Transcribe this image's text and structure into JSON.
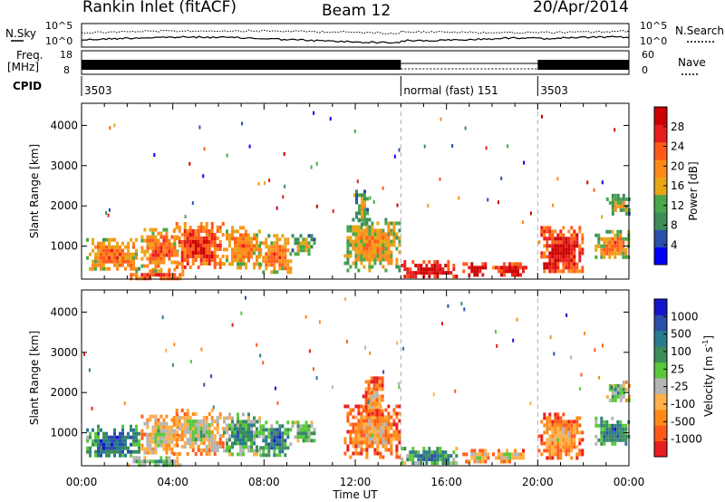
{
  "header": {
    "station": "Rankin Inlet (fitACF)",
    "beam": "Beam 12",
    "date": "20/Apr/2014"
  },
  "labels": {
    "nsky": "N.Sky",
    "nsearch": "N.Search",
    "freq_line1": "Freq.",
    "freq_line2": "[MHz]",
    "nave": "Nave",
    "cpid": "CPID",
    "slant_range": "Slant Range [km]",
    "power_label": "Power [dB]",
    "velocity_label": "Velocity [m s",
    "velocity_exp": "-1",
    "velocity_close": "]",
    "time_axis": "Time UT"
  },
  "noise_panel": {
    "left_ticks": [
      "10^5",
      "10^0"
    ],
    "right_ticks": [
      "10^5",
      "10^0"
    ]
  },
  "freq_panel": {
    "left_ticks": [
      "18",
      "8"
    ],
    "right_ticks": [
      "60",
      "0"
    ]
  },
  "cpid_segments": [
    {
      "label": "3503",
      "start_hour": 0
    },
    {
      "label": "normal (fast) 151",
      "start_hour": 14
    },
    {
      "label": "3503",
      "start_hour": 20
    }
  ],
  "colors": {
    "power": [
      "#0000ff",
      "#2a4fa8",
      "#3d8c5a",
      "#4aa64a",
      "#e8a617",
      "#ff8a1a",
      "#ff5a1a",
      "#e81e1e",
      "#cc0000"
    ],
    "velocity": [
      "#e81e1e",
      "#ff5a1a",
      "#ff8a1a",
      "#ffb04a",
      "#b4b4b4",
      "#5ac83a",
      "#3d8c5a",
      "#2a7a90",
      "#2a4fa8",
      "#1414c8"
    ],
    "ground_scatter": "#a0a0a0"
  },
  "chart_data": [
    {
      "type": "heatmap",
      "name": "power",
      "x_unit": "hour UT",
      "xlim": [
        0,
        24
      ],
      "ylim": [
        180,
        4550
      ],
      "x_ticks": [
        "00:00",
        "04:00",
        "08:00",
        "12:00",
        "16:00",
        "20:00",
        "00:00"
      ],
      "y_ticks": [
        "1000",
        "2000",
        "3000",
        "4000"
      ],
      "colorbar_ticks": [
        "4",
        "8",
        "12",
        "16",
        "20",
        "24",
        "28"
      ],
      "clim": [
        0,
        30
      ],
      "cpid_changes": [
        14,
        20
      ],
      "regions": [
        {
          "x0": 0.2,
          "x1": 2.5,
          "y0": 400,
          "y1": 1200,
          "level": 0.55
        },
        {
          "x0": 2.6,
          "x1": 4.2,
          "y0": 450,
          "y1": 1450,
          "level": 0.6
        },
        {
          "x0": 4.0,
          "x1": 6.2,
          "y0": 450,
          "y1": 1600,
          "level": 0.7
        },
        {
          "x0": 6.2,
          "x1": 7.8,
          "y0": 500,
          "y1": 1500,
          "level": 0.55
        },
        {
          "x0": 7.8,
          "x1": 9.2,
          "y0": 350,
          "y1": 1300,
          "level": 0.55
        },
        {
          "x0": 9.2,
          "x1": 10.2,
          "y0": 800,
          "y1": 1300,
          "level": 0.35
        },
        {
          "x0": 11.5,
          "x1": 14.0,
          "y0": 400,
          "y1": 1700,
          "level": 0.45
        },
        {
          "x0": 12.0,
          "x1": 12.5,
          "y0": 1500,
          "y1": 2400,
          "level": 0.35
        },
        {
          "x0": 14.0,
          "x1": 16.5,
          "y0": 250,
          "y1": 650,
          "level": 0.85
        },
        {
          "x0": 16.7,
          "x1": 17.8,
          "y0": 300,
          "y1": 600,
          "level": 0.85
        },
        {
          "x0": 18.0,
          "x1": 19.5,
          "y0": 300,
          "y1": 600,
          "level": 0.85
        },
        {
          "x0": 20.0,
          "x1": 22.0,
          "y0": 350,
          "y1": 1500,
          "level": 0.78
        },
        {
          "x0": 22.5,
          "x1": 24.0,
          "y0": 700,
          "y1": 1400,
          "level": 0.5
        },
        {
          "x0": 23.0,
          "x1": 24.0,
          "y0": 1800,
          "y1": 2300,
          "level": 0.35
        },
        {
          "x0": 2.0,
          "x1": 4.5,
          "y0": 200,
          "y1": 420,
          "level": 0.65
        }
      ]
    },
    {
      "type": "heatmap",
      "name": "velocity",
      "x_unit": "hour UT",
      "xlim": [
        0,
        24
      ],
      "ylim": [
        180,
        4550
      ],
      "x_ticks": [
        "00:00",
        "04:00",
        "08:00",
        "12:00",
        "16:00",
        "20:00",
        "00:00"
      ],
      "y_ticks": [
        "1000",
        "2000",
        "3000",
        "4000"
      ],
      "colorbar_ticks": [
        "-1000",
        "-500",
        "-100",
        "-25",
        "25",
        "100",
        "500",
        "1000"
      ],
      "clim": [
        -1200,
        1200
      ],
      "cpid_changes": [
        14,
        20
      ],
      "regions": [
        {
          "x0": 0.2,
          "x1": 2.5,
          "y0": 400,
          "y1": 1200,
          "level": 0.7
        },
        {
          "x0": 2.6,
          "x1": 4.2,
          "y0": 500,
          "y1": 1450,
          "level": 0.35
        },
        {
          "x0": 4.0,
          "x1": 6.2,
          "y0": 500,
          "y1": 1600,
          "level": 0.35
        },
        {
          "x0": 6.2,
          "x1": 7.8,
          "y0": 500,
          "y1": 1500,
          "level": 0.55
        },
        {
          "x0": 7.8,
          "x1": 9.2,
          "y0": 400,
          "y1": 1300,
          "level": 0.65
        },
        {
          "x0": 9.2,
          "x1": 10.2,
          "y0": 800,
          "y1": 1300,
          "level": 0.55
        },
        {
          "x0": 11.5,
          "x1": 14.0,
          "y0": 400,
          "y1": 1700,
          "level": 0.2
        },
        {
          "x0": 12.3,
          "x1": 13.2,
          "y0": 1400,
          "y1": 2400,
          "level": 0.2
        },
        {
          "x0": 14.0,
          "x1": 16.5,
          "y0": 250,
          "y1": 650,
          "level": 0.6
        },
        {
          "x0": 16.7,
          "x1": 17.8,
          "y0": 300,
          "y1": 600,
          "level": 0.3
        },
        {
          "x0": 18.0,
          "x1": 19.5,
          "y0": 300,
          "y1": 600,
          "level": 0.3
        },
        {
          "x0": 20.0,
          "x1": 22.0,
          "y0": 350,
          "y1": 1500,
          "level": 0.22
        },
        {
          "x0": 22.5,
          "x1": 24.0,
          "y0": 700,
          "y1": 1400,
          "level": 0.65
        },
        {
          "x0": 23.0,
          "x1": 24.0,
          "y0": 1800,
          "y1": 2300,
          "level": 0.45
        },
        {
          "x0": 2.0,
          "x1": 4.5,
          "y0": 200,
          "y1": 420,
          "level": 0.5
        }
      ]
    }
  ]
}
